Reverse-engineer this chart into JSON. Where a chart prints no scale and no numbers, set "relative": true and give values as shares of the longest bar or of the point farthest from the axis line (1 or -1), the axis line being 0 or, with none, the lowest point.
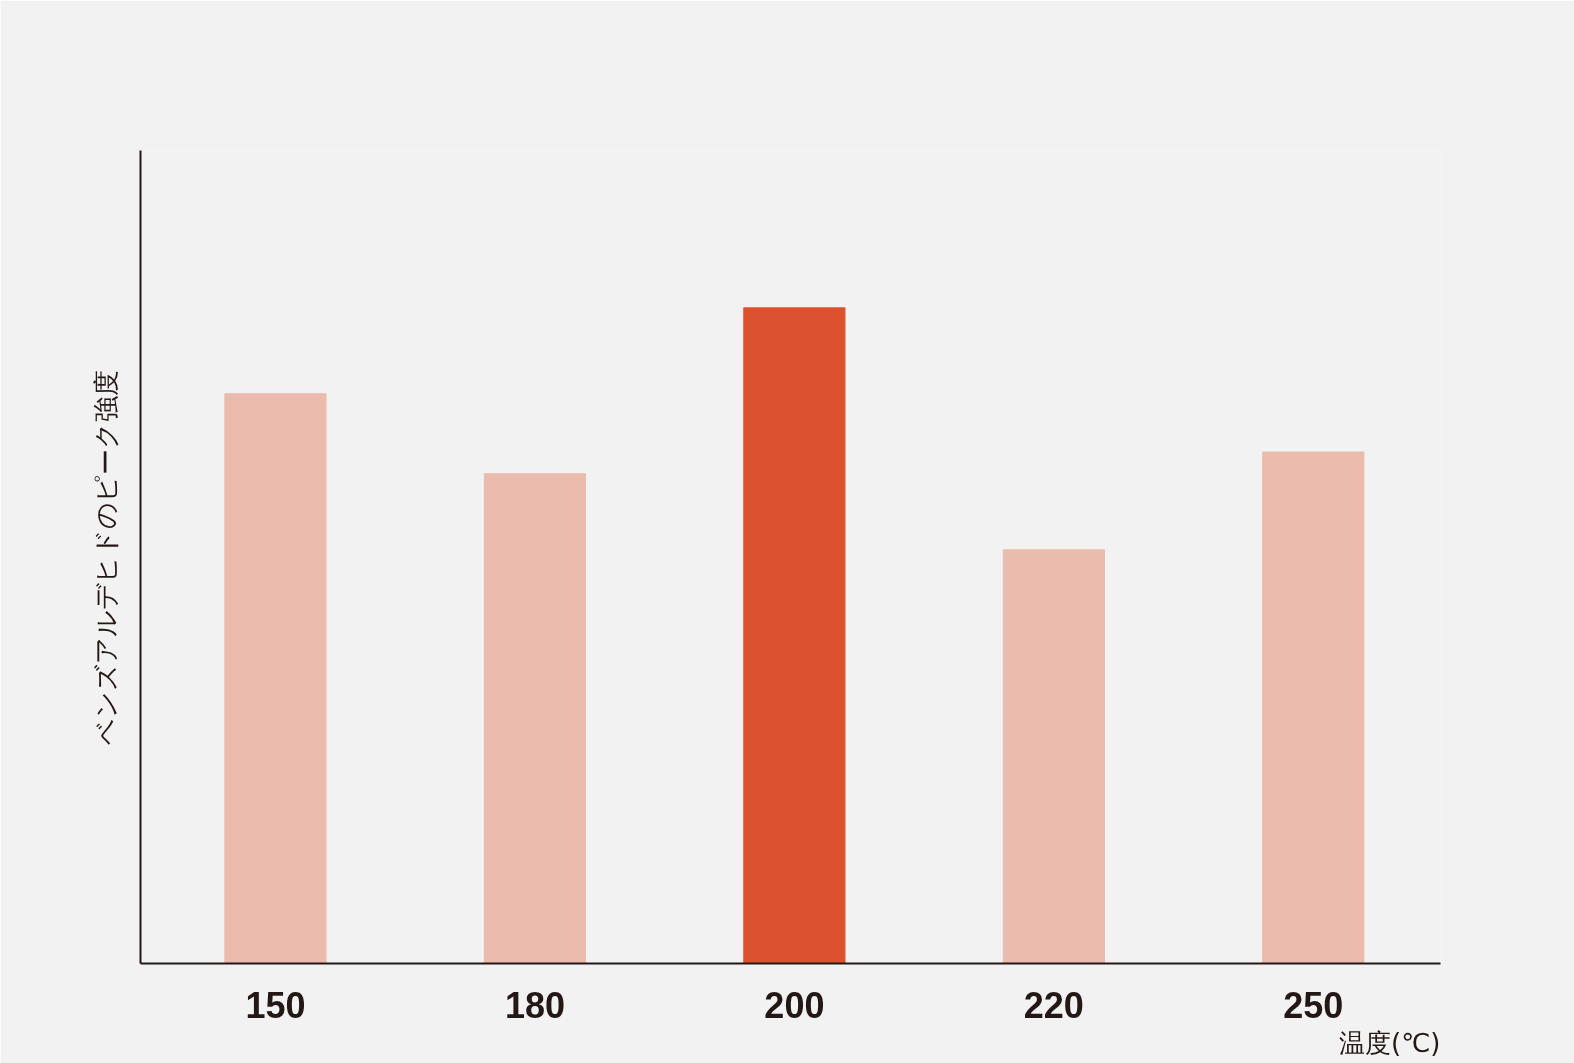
{
  "chart_data": {
    "type": "bar",
    "relative": true,
    "xlabel": "温度(℃)",
    "ylabel": "ベンズアルデヒドのピーク強度",
    "categories": [
      "150",
      "180",
      "200",
      "220",
      "250"
    ],
    "values": [
      0.869,
      0.747,
      1,
      0.631,
      0.78
    ],
    "colors": [
      "#ebbbad",
      "#ebbbad",
      "#dd522e",
      "#ebbbad",
      "#ebbbad"
    ],
    "grid": false
  }
}
